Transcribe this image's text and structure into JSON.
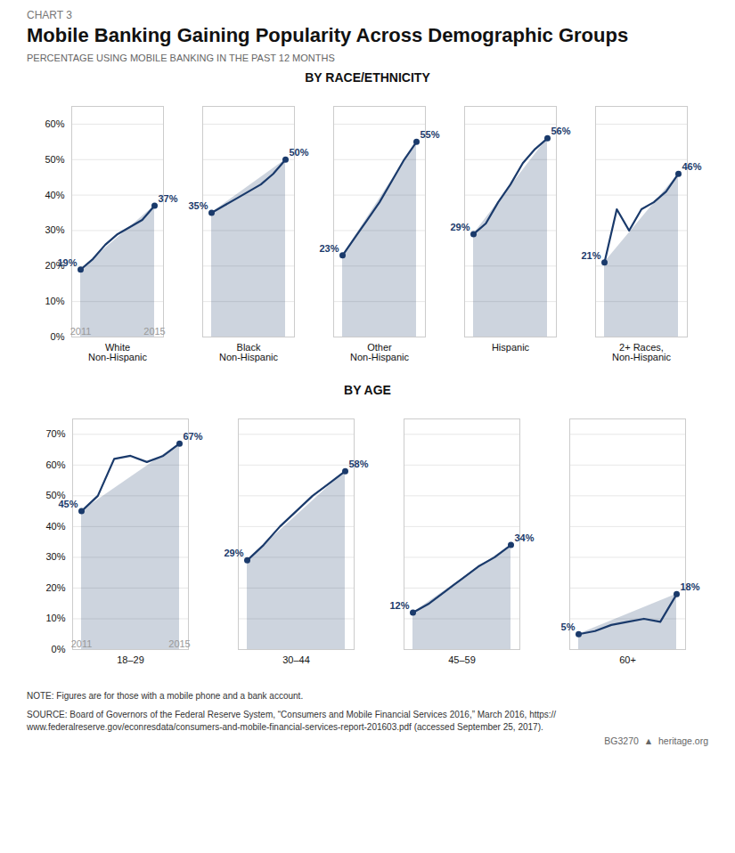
{
  "label": "CHART 3",
  "title": "Mobile Banking Gaining Popularity Across Demographic Groups",
  "subtitle": "PERCENTAGE USING MOBILE BANKING IN THE PAST 12 MONTHS",
  "notes": [
    "NOTE: Figures are for those with a mobile phone and a bank account.",
    "SOURCE: Board of Governors of the Federal Reserve System, “Consumers and Mobile Financial Services 2016,” March 2016, https://",
    "www.federalreserve.gov/econresdata/consumers-and-mobile-financial-services-report-201603.pdf (accessed September 25, 2017)."
  ],
  "badge": "BG3270  ▲  heritage.org",
  "chart_data": [
    {
      "type": "line",
      "title": "BY RACE/ETHNICITY",
      "categories": [
        "White\nNon-Hispanic",
        "Black\nNon-Hispanic",
        "Other\nNon-Hispanic",
        "Hispanic",
        "2+ Races,\nNon-Hispanic"
      ],
      "x": [
        "2011",
        null,
        null,
        null,
        null,
        null,
        "2015"
      ],
      "values": [
        [
          19,
          22,
          26,
          29,
          31,
          33,
          37
        ],
        [
          35,
          37,
          39,
          41,
          43,
          46,
          50
        ],
        [
          23,
          28,
          33,
          38,
          44,
          50,
          55
        ],
        [
          29,
          32,
          38,
          43,
          49,
          53,
          56
        ],
        [
          21,
          36,
          30,
          36,
          38,
          41,
          46
        ]
      ],
      "value_labels": [
        [
          "19%",
          null,
          null,
          null,
          null,
          null,
          "37%"
        ],
        [
          "35%",
          null,
          null,
          null,
          null,
          null,
          "50%"
        ],
        [
          "23%",
          null,
          null,
          null,
          null,
          null,
          "55%"
        ],
        [
          "29%",
          null,
          null,
          null,
          null,
          null,
          "56%"
        ],
        [
          "21%",
          null,
          null,
          null,
          null,
          null,
          "46%"
        ]
      ],
      "color": "#1a3a6b",
      "ylim": [
        0,
        65
      ],
      "yticks": [
        {
          "value": 0,
          "label": "0%"
        },
        {
          "value": 10,
          "label": "10%"
        },
        {
          "value": 20,
          "label": "20%"
        },
        {
          "value": 30,
          "label": "30%"
        },
        {
          "value": 40,
          "label": "40%"
        },
        {
          "value": 50,
          "label": "50%"
        },
        {
          "value": 60,
          "label": "60%"
        }
      ],
      "grid": true,
      "data_labels": true
    },
    {
      "type": "line",
      "title": "BY AGE",
      "categories": [
        "18–29",
        "30–44",
        "45–59",
        "60+"
      ],
      "x": [
        "2011",
        null,
        null,
        null,
        null,
        null,
        "2015"
      ],
      "values": [
        [
          45,
          50,
          62,
          63,
          61,
          63,
          67
        ],
        [
          29,
          34,
          40,
          45,
          50,
          54,
          58
        ],
        [
          12,
          15,
          19,
          23,
          27,
          30,
          34
        ],
        [
          5,
          6,
          8,
          9,
          10,
          9,
          18
        ]
      ],
      "value_labels": [
        [
          "45%",
          null,
          null,
          null,
          null,
          null,
          "67%"
        ],
        [
          "29%",
          null,
          null,
          null,
          null,
          null,
          "58%"
        ],
        [
          "12%",
          null,
          null,
          null,
          null,
          null,
          "34%"
        ],
        [
          "5%",
          null,
          null,
          null,
          null,
          null,
          "18%"
        ]
      ],
      "color": "#1a3a6b",
      "ylim": [
        0,
        75
      ],
      "yticks": [
        {
          "value": 0,
          "label": "0%"
        },
        {
          "value": 10,
          "label": "10%"
        },
        {
          "value": 20,
          "label": "20%"
        },
        {
          "value": 30,
          "label": "30%"
        },
        {
          "value": 40,
          "label": "40%"
        },
        {
          "value": 50,
          "label": "50%"
        },
        {
          "value": 60,
          "label": "60%"
        },
        {
          "value": 70,
          "label": "70%"
        }
      ],
      "grid": true,
      "data_labels": true
    }
  ]
}
